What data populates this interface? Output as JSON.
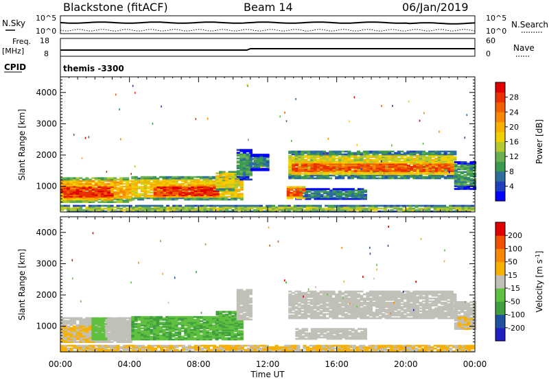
{
  "header": {
    "station": "Blackstone (fitACF)",
    "beam": "Beam 14",
    "date": "06/Jan/2019"
  },
  "summary_panels": {
    "nsky": {
      "label": "N.Sky",
      "ticks": [
        "10^5",
        "10^0"
      ]
    },
    "nsearch": {
      "label": "N.Search",
      "ticks": [
        "10^5",
        "10^0"
      ]
    },
    "freq": {
      "label_top": "Freq.",
      "label_unit": "[MHz]",
      "ticks": [
        "18",
        "8"
      ]
    },
    "nave": {
      "label": "Nave",
      "ticks": [
        "60",
        "0"
      ]
    },
    "cpid": {
      "label": "CPID",
      "value": "themis -3300"
    }
  },
  "chart_data": [
    {
      "type": "heatmap",
      "title": "Power",
      "xlabel": "Time UT",
      "ylabel": "Slant Range [km]",
      "x_ticks": [
        "00:00",
        "04:00",
        "08:00",
        "12:00",
        "16:00",
        "20:00",
        "00:00"
      ],
      "x_range_hours": [
        0,
        24
      ],
      "y_ticks": [
        "4000",
        "3000",
        "2000",
        "1000"
      ],
      "y_range_km": [
        180,
        4500
      ],
      "colorbar": {
        "label": "Power [dB]",
        "ticks": [
          "28",
          "24",
          "20",
          "16",
          "12",
          "8",
          "4"
        ],
        "range": [
          0,
          32
        ],
        "colors": [
          "#0000ff",
          "#2040c0",
          "#2e6e9c",
          "#3c9a50",
          "#6ab050",
          "#b4c830",
          "#f0d000",
          "#f8b000",
          "#f88800",
          "#f06000",
          "#e83000",
          "#e00000"
        ]
      },
      "regions": [
        {
          "t": [
            0.0,
            4.1
          ],
          "r": [
            480,
            1260
          ],
          "value": 20
        },
        {
          "t": [
            0.0,
            3.0
          ],
          "r": [
            560,
            1060
          ],
          "value": 28
        },
        {
          "t": [
            4.1,
            10.4
          ],
          "r": [
            560,
            1300
          ],
          "value": 18
        },
        {
          "t": [
            5.4,
            9.0
          ],
          "r": [
            650,
            1020
          ],
          "value": 28
        },
        {
          "t": [
            9.0,
            10.2
          ],
          "r": [
            860,
            1480
          ],
          "value": 16
        },
        {
          "t": [
            10.2,
            11.0
          ],
          "r": [
            1200,
            2150
          ],
          "value": 10
        },
        {
          "t": [
            11.0,
            12.0
          ],
          "r": [
            1500,
            2000
          ],
          "value": 8
        },
        {
          "t": [
            13.2,
            22.8
          ],
          "r": [
            1240,
            2100
          ],
          "value": 16
        },
        {
          "t": [
            13.4,
            22.6
          ],
          "r": [
            1380,
            1780
          ],
          "value": 26
        },
        {
          "t": [
            13.6,
            17.6
          ],
          "r": [
            580,
            900
          ],
          "value": 8
        },
        {
          "t": [
            13.1,
            14.0
          ],
          "r": [
            600,
            1000
          ],
          "value": 26
        },
        {
          "t": [
            22.8,
            23.9
          ],
          "r": [
            900,
            1800
          ],
          "value": 10
        },
        {
          "t": [
            0.0,
            23.9
          ],
          "r": [
            180,
            380
          ],
          "value": 14
        }
      ]
    },
    {
      "type": "heatmap",
      "title": "Velocity",
      "xlabel": "Time UT",
      "ylabel": "Slant Range [km]",
      "x_ticks": [
        "00:00",
        "04:00",
        "08:00",
        "12:00",
        "16:00",
        "20:00",
        "00:00"
      ],
      "x_range_hours": [
        0,
        24
      ],
      "y_ticks": [
        "4000",
        "3000",
        "2000",
        "1000"
      ],
      "y_range_km": [
        180,
        4500
      ],
      "colorbar": {
        "label": "Velocity [m s^-1]",
        "ticks": [
          "200",
          "100",
          "50",
          "15",
          "-15",
          "-50",
          "-100",
          "-200"
        ],
        "range": [
          -250,
          250
        ],
        "colors": [
          "#2020c0",
          "#2050a0",
          "#40a040",
          "#60c040",
          "#c0c0b8",
          "#f8b000",
          "#f88800",
          "#f05000",
          "#e00000"
        ]
      },
      "regions": [
        {
          "t": [
            0.0,
            4.1
          ],
          "r": [
            480,
            1260
          ],
          "value": 0
        },
        {
          "t": [
            0.0,
            1.8
          ],
          "r": [
            480,
            1000
          ],
          "value": 30
        },
        {
          "t": [
            1.8,
            2.6
          ],
          "r": [
            560,
            1260
          ],
          "value": -40
        },
        {
          "t": [
            2.6,
            4.1
          ],
          "r": [
            560,
            1260
          ],
          "value": 0
        },
        {
          "t": [
            4.1,
            10.4
          ],
          "r": [
            560,
            1300
          ],
          "value": -80
        },
        {
          "t": [
            9.0,
            10.2
          ],
          "r": [
            860,
            1480
          ],
          "value": -80
        },
        {
          "t": [
            10.2,
            11.0
          ],
          "r": [
            1200,
            2150
          ],
          "value": 0
        },
        {
          "t": [
            13.2,
            22.8
          ],
          "r": [
            1240,
            2100
          ],
          "value": 0
        },
        {
          "t": [
            13.6,
            17.6
          ],
          "r": [
            580,
            900
          ],
          "value": 0
        },
        {
          "t": [
            22.8,
            23.9
          ],
          "r": [
            900,
            1800
          ],
          "value": 0
        },
        {
          "t": [
            23.0,
            23.9
          ],
          "r": [
            900,
            1300
          ],
          "value": 30
        },
        {
          "t": [
            0.0,
            23.9
          ],
          "r": [
            180,
            380
          ],
          "value": 30
        }
      ]
    }
  ]
}
